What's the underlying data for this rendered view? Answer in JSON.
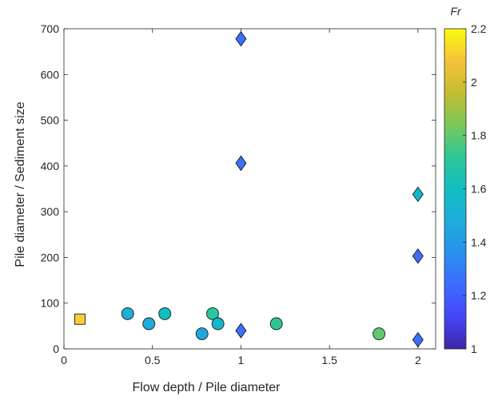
{
  "chart_data": {
    "type": "scatter",
    "xlabel": "Flow depth / Pile diameter",
    "ylabel": "Pile diameter / Sediment size",
    "xlim": [
      0,
      2.1
    ],
    "ylim": [
      0,
      700
    ],
    "x_ticks": [
      0,
      0.5,
      1,
      1.5,
      2
    ],
    "y_ticks": [
      0,
      100,
      200,
      300,
      400,
      500,
      600,
      700
    ],
    "grid": false,
    "colorbar": {
      "label": "Fr",
      "range": [
        1,
        2.2
      ],
      "ticks": [
        1,
        1.2,
        1.4,
        1.6,
        1.8,
        2,
        2.2
      ],
      "colormap": "parula"
    },
    "points": [
      {
        "marker": "square",
        "x": 0.09,
        "y": 65,
        "fr": 2.1
      },
      {
        "marker": "circle",
        "x": 0.36,
        "y": 77,
        "fr": 1.5
      },
      {
        "marker": "circle",
        "x": 0.48,
        "y": 55,
        "fr": 1.47
      },
      {
        "marker": "circle",
        "x": 0.57,
        "y": 77,
        "fr": 1.6
      },
      {
        "marker": "circle",
        "x": 0.78,
        "y": 33,
        "fr": 1.45
      },
      {
        "marker": "circle",
        "x": 0.84,
        "y": 77,
        "fr": 1.7
      },
      {
        "marker": "circle",
        "x": 0.87,
        "y": 55,
        "fr": 1.55
      },
      {
        "marker": "circle",
        "x": 1.2,
        "y": 55,
        "fr": 1.72
      },
      {
        "marker": "circle",
        "x": 1.78,
        "y": 33,
        "fr": 1.8
      },
      {
        "marker": "diamond",
        "x": 1.0,
        "y": 678,
        "fr": 1.25
      },
      {
        "marker": "diamond",
        "x": 1.0,
        "y": 406,
        "fr": 1.25
      },
      {
        "marker": "diamond",
        "x": 1.0,
        "y": 40,
        "fr": 1.25
      },
      {
        "marker": "diamond",
        "x": 2.0,
        "y": 338,
        "fr": 1.55
      },
      {
        "marker": "diamond",
        "x": 2.0,
        "y": 203,
        "fr": 1.25
      },
      {
        "marker": "diamond",
        "x": 2.0,
        "y": 20,
        "fr": 1.25
      }
    ]
  }
}
